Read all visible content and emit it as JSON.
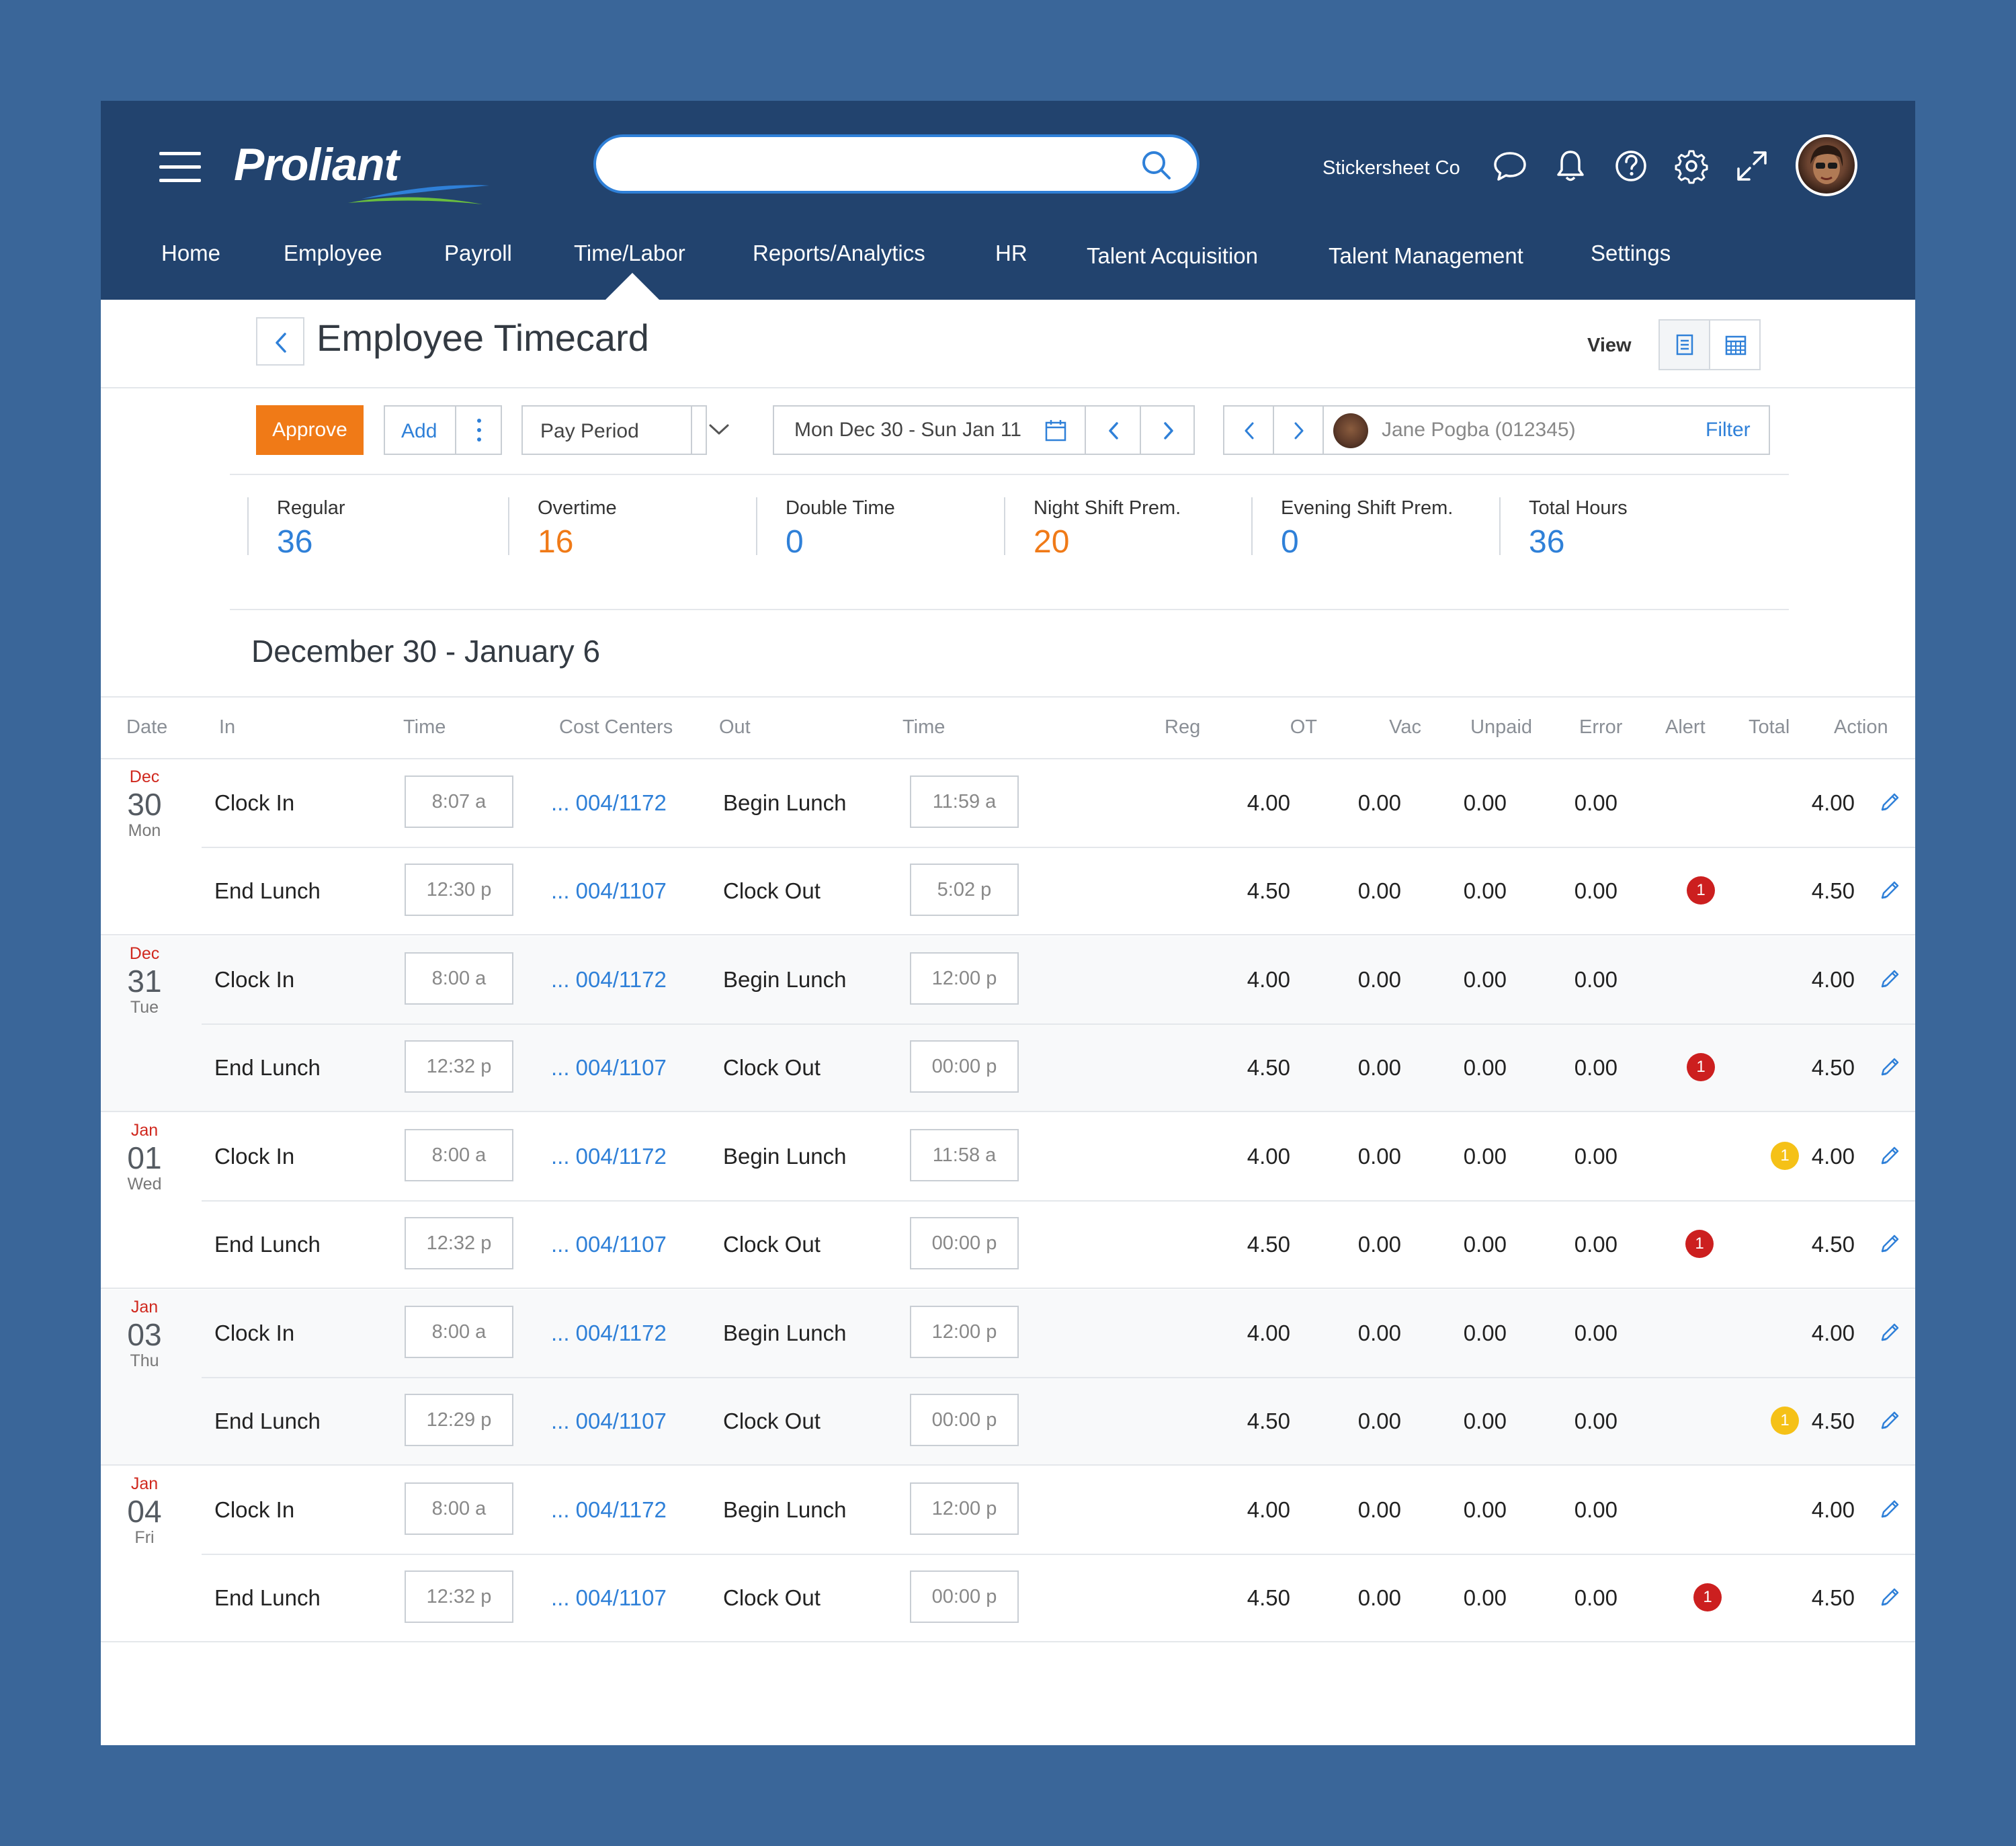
{
  "header": {
    "brand": "Proliant",
    "search": {
      "value": "",
      "placeholder": ""
    },
    "company": "Stickersheet Co",
    "nav": [
      "Home",
      "Employee",
      "Payroll",
      "Time/Labor",
      "Reports/Analytics",
      "HR",
      "Talent Acquisition",
      "Talent Management",
      "Settings"
    ],
    "active_nav": "Time/Labor"
  },
  "page": {
    "title": "Employee Timecard",
    "view_label": "View"
  },
  "toolbar": {
    "approve": "Approve",
    "add": "Add",
    "pay_period": "Pay Period",
    "date_range": "Mon Dec 30 - Sun Jan 11",
    "employee": "Jane Pogba (012345)",
    "filter": "Filter"
  },
  "stats": [
    {
      "label": "Regular",
      "value": "36",
      "color": "#2f80d8"
    },
    {
      "label": "Overtime",
      "value": "16",
      "color": "#f07a17"
    },
    {
      "label": "Double Time",
      "value": "0",
      "color": "#2f80d8"
    },
    {
      "label": "Night Shift Prem.",
      "value": "20",
      "color": "#f07a17"
    },
    {
      "label": "Evening Shift Prem.",
      "value": "0",
      "color": "#2f80d8"
    },
    {
      "label": "Total Hours",
      "value": "36",
      "color": "#2f80d8"
    }
  ],
  "range_heading": "December 30 - January 6",
  "table": {
    "columns": [
      "Date",
      "In",
      "Time",
      "Cost Centers",
      "Out",
      "Time",
      "Reg",
      "OT",
      "Vac",
      "Unpaid",
      "Error",
      "Alert",
      "Total",
      "Action"
    ],
    "days": [
      {
        "mon": "Dec",
        "num": "30",
        "dow": "Mon",
        "rows": [
          {
            "in": "Clock In",
            "in_time": "8:07 a",
            "cc": "... 004/1172",
            "out": "Begin Lunch",
            "out_time": "11:59 a",
            "reg": "4.00",
            "ot": "0.00",
            "vac": "0.00",
            "unpaid": "0.00",
            "error": "",
            "alert": "",
            "total": "4.00"
          },
          {
            "in": "End Lunch",
            "in_time": "12:30 p",
            "cc": "... 004/1107",
            "out": "Clock Out",
            "out_time": "5:02 p",
            "reg": "4.50",
            "ot": "0.00",
            "vac": "0.00",
            "unpaid": "0.00",
            "error": "1",
            "alert": "",
            "total": "4.50"
          }
        ]
      },
      {
        "mon": "Dec",
        "num": "31",
        "dow": "Tue",
        "rows": [
          {
            "in": "Clock In",
            "in_time": "8:00 a",
            "cc": "... 004/1172",
            "out": "Begin Lunch",
            "out_time": "12:00 p",
            "reg": "4.00",
            "ot": "0.00",
            "vac": "0.00",
            "unpaid": "0.00",
            "error": "",
            "alert": "",
            "total": "4.00"
          },
          {
            "in": "End Lunch",
            "in_time": "12:32 p",
            "cc": "... 004/1107",
            "out": "Clock Out",
            "out_time": "00:00 p",
            "reg": "4.50",
            "ot": "0.00",
            "vac": "0.00",
            "unpaid": "0.00",
            "error": "1",
            "alert": "",
            "total": "4.50"
          }
        ]
      },
      {
        "mon": "Jan",
        "num": "01",
        "dow": "Wed",
        "rows": [
          {
            "in": "Clock In",
            "in_time": "8:00 a",
            "cc": "... 004/1172",
            "out": "Begin Lunch",
            "out_time": "11:58 a",
            "reg": "4.00",
            "ot": "0.00",
            "vac": "0.00",
            "unpaid": "0.00",
            "error": "",
            "alert": "1",
            "total": "4.00"
          },
          {
            "in": "End Lunch",
            "in_time": "12:32 p",
            "cc": "... 004/1107",
            "out": "Clock Out",
            "out_time": "00:00 p",
            "reg": "4.50",
            "ot": "0.00",
            "vac": "0.00",
            "unpaid": "0.00",
            "error": "1",
            "alert": "",
            "total": "4.50"
          }
        ]
      },
      {
        "mon": "Jan",
        "num": "03",
        "dow": "Thu",
        "rows": [
          {
            "in": "Clock In",
            "in_time": "8:00 a",
            "cc": "... 004/1172",
            "out": "Begin Lunch",
            "out_time": "12:00 p",
            "reg": "4.00",
            "ot": "0.00",
            "vac": "0.00",
            "unpaid": "0.00",
            "error": "",
            "alert": "",
            "total": "4.00"
          },
          {
            "in": "End Lunch",
            "in_time": "12:29 p",
            "cc": "... 004/1107",
            "out": "Clock Out",
            "out_time": "00:00 p",
            "reg": "4.50",
            "ot": "0.00",
            "vac": "0.00",
            "unpaid": "0.00",
            "error": "",
            "alert": "1",
            "total": "4.50"
          }
        ]
      },
      {
        "mon": "Jan",
        "num": "04",
        "dow": "Fri",
        "rows": [
          {
            "in": "Clock In",
            "in_time": "8:00 a",
            "cc": "... 004/1172",
            "out": "Begin Lunch",
            "out_time": "12:00 p",
            "reg": "4.00",
            "ot": "0.00",
            "vac": "0.00",
            "unpaid": "0.00",
            "error": "",
            "alert": "",
            "total": "4.00"
          },
          {
            "in": "End Lunch",
            "in_time": "12:32 p",
            "cc": "... 004/1107",
            "out": "Clock Out",
            "out_time": "00:00 p",
            "reg": "4.50",
            "ot": "0.00",
            "vac": "0.00",
            "unpaid": "0.00",
            "error": "1",
            "alert": "",
            "total": "4.50"
          }
        ]
      }
    ]
  },
  "colors": {
    "header_bg": "#22436e",
    "page_bg": "#3a6699",
    "accent": "#2f80d8",
    "approve": "#f07a17",
    "error_badge": "#cc1f1f",
    "alert_badge": "#f5c117"
  },
  "icons": [
    "menu-icon",
    "search-icon",
    "chat-icon",
    "bell-icon",
    "help-icon",
    "gear-icon",
    "expand-icon",
    "chevron-left-icon",
    "chevron-right-icon",
    "chevron-down-icon",
    "calendar-icon",
    "list-view-icon",
    "calendar-view-icon",
    "pencil-icon",
    "trash-icon"
  ]
}
